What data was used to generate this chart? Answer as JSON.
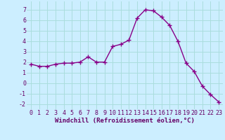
{
  "x": [
    0,
    1,
    2,
    3,
    4,
    5,
    6,
    7,
    8,
    9,
    10,
    11,
    12,
    13,
    14,
    15,
    16,
    17,
    18,
    19,
    20,
    21,
    22,
    23
  ],
  "y": [
    1.8,
    1.6,
    1.6,
    1.8,
    1.9,
    1.9,
    2.0,
    2.5,
    2.0,
    2.0,
    3.5,
    3.7,
    4.1,
    6.2,
    7.0,
    6.9,
    6.3,
    5.5,
    4.0,
    1.9,
    1.1,
    -0.3,
    -1.1,
    -1.8
  ],
  "line_color": "#880088",
  "marker": "+",
  "marker_size": 4,
  "linewidth": 1.0,
  "bg_color": "#cceeff",
  "grid_color": "#aadddd",
  "xlabel": "Windchill (Refroidissement éolien,°C)",
  "xlabel_fontsize": 6.5,
  "tick_fontsize": 6,
  "ylim": [
    -2.5,
    7.8
  ],
  "xlim": [
    -0.5,
    23.5
  ],
  "yticks": [
    -2,
    -1,
    0,
    1,
    2,
    3,
    4,
    5,
    6,
    7
  ],
  "xticks": [
    0,
    1,
    2,
    3,
    4,
    5,
    6,
    7,
    8,
    9,
    10,
    11,
    12,
    13,
    14,
    15,
    16,
    17,
    18,
    19,
    20,
    21,
    22,
    23
  ]
}
